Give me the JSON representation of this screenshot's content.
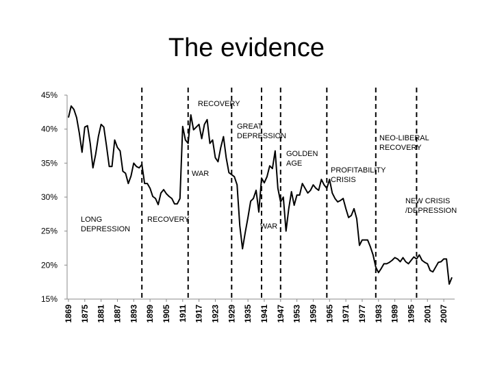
{
  "chart_data": {
    "type": "line",
    "title": "The evidence",
    "color": "#000000",
    "x": [
      1869,
      1870,
      1871,
      1872,
      1873,
      1874,
      1875,
      1876,
      1877,
      1878,
      1879,
      1880,
      1881,
      1882,
      1883,
      1884,
      1885,
      1886,
      1887,
      1888,
      1889,
      1890,
      1891,
      1892,
      1893,
      1894,
      1895,
      1896,
      1897,
      1898,
      1899,
      1900,
      1901,
      1902,
      1903,
      1904,
      1905,
      1906,
      1907,
      1908,
      1909,
      1910,
      1911,
      1912,
      1913,
      1914,
      1915,
      1916,
      1917,
      1918,
      1919,
      1920,
      1921,
      1922,
      1923,
      1924,
      1925,
      1926,
      1927,
      1928,
      1929,
      1930,
      1931,
      1932,
      1933,
      1934,
      1935,
      1936,
      1937,
      1938,
      1939,
      1940,
      1941,
      1942,
      1943,
      1944,
      1945,
      1946,
      1947,
      1948,
      1949,
      1950,
      1951,
      1952,
      1953,
      1954,
      1955,
      1956,
      1957,
      1958,
      1959,
      1960,
      1961,
      1962,
      1963,
      1964,
      1965,
      1966,
      1967,
      1968,
      1969,
      1970,
      1971,
      1972,
      1973,
      1974,
      1975,
      1976,
      1977,
      1978,
      1979,
      1980,
      1981,
      1982,
      1983,
      1984,
      1985,
      1986,
      1987,
      1988,
      1989,
      1990,
      1991,
      1992,
      1993,
      1994,
      1995,
      1996,
      1997,
      1998,
      1999,
      2000,
      2001,
      2002,
      2003,
      2004,
      2005,
      2006,
      2007,
      2008,
      2009,
      2010
    ],
    "values": [
      41.7,
      43.4,
      42.9,
      41.7,
      39.4,
      36.6,
      40.3,
      40.5,
      37.9,
      34.3,
      36.3,
      38.9,
      40.7,
      40.3,
      37.5,
      34.5,
      34.5,
      38.4,
      37.3,
      36.8,
      33.8,
      33.5,
      32.0,
      33.1,
      35.0,
      34.5,
      34.3,
      34.8,
      32.0,
      32.0,
      31.3,
      30.1,
      29.8,
      28.9,
      30.6,
      31.1,
      30.5,
      30.1,
      29.8,
      29.0,
      29.0,
      29.8,
      40.4,
      38.4,
      37.9,
      42.1,
      39.9,
      40.3,
      40.7,
      38.6,
      40.7,
      41.4,
      37.9,
      38.4,
      35.8,
      35.2,
      37.3,
      38.9,
      35.8,
      33.6,
      33.3,
      33.0,
      31.8,
      25.8,
      22.4,
      24.8,
      27.0,
      29.4,
      29.8,
      31.0,
      27.8,
      32.8,
      32.1,
      33.0,
      34.6,
      34.2,
      36.8,
      31.3,
      29.3,
      30.0,
      25.0,
      28.3,
      30.8,
      28.8,
      30.3,
      30.3,
      32.0,
      31.3,
      30.6,
      31.0,
      31.8,
      31.3,
      31.0,
      32.6,
      31.8,
      31.3,
      32.6,
      30.6,
      29.8,
      29.3,
      29.5,
      29.8,
      28.3,
      27.0,
      27.3,
      28.3,
      26.8,
      22.9,
      23.7,
      23.7,
      23.7,
      22.7,
      21.5,
      19.7,
      18.9,
      19.5,
      20.2,
      20.2,
      20.4,
      20.7,
      21.1,
      20.9,
      20.5,
      21.1,
      20.5,
      20.2,
      20.7,
      21.2,
      20.9,
      21.5,
      20.7,
      20.4,
      20.2,
      19.2,
      19.0,
      19.7,
      20.4,
      20.5,
      20.9,
      20.9,
      17.2,
      18.2
    ],
    "xlim": [
      1868,
      2011
    ],
    "xticks": [
      1869,
      1875,
      1881,
      1887,
      1893,
      1899,
      1905,
      1911,
      1917,
      1923,
      1929,
      1935,
      1941,
      1947,
      1953,
      1959,
      1965,
      1971,
      1977,
      1983,
      1989,
      1995,
      2001,
      2007
    ],
    "ylim": [
      15,
      45
    ],
    "yticks": [
      {
        "value": 15,
        "label": "15%"
      },
      {
        "value": 20,
        "label": "20%"
      },
      {
        "value": 25,
        "label": "25%"
      },
      {
        "value": 30,
        "label": "30%"
      },
      {
        "value": 35,
        "label": "35%"
      },
      {
        "value": 40,
        "label": "40%"
      },
      {
        "value": 45,
        "label": "45%"
      }
    ],
    "vlines": [
      1896,
      1913,
      1929,
      1940,
      1947,
      1964,
      1982,
      1997
    ],
    "annotations": [
      {
        "lines": [
          "RECOVERY"
        ]
      },
      {
        "lines": [
          "GREAT",
          "DEPRESSION"
        ]
      },
      {
        "lines": [
          "GOLDEN",
          "AGE"
        ]
      },
      {
        "lines": [
          "PROFITABILITY",
          "CRISIS"
        ]
      },
      {
        "lines": [
          "NEO-LIBERAL",
          "RECOVERY"
        ]
      },
      {
        "lines": [
          "WAR"
        ]
      },
      {
        "lines": [
          "LONG",
          "DEPRESSION"
        ]
      },
      {
        "lines": [
          "RECOVERY"
        ]
      },
      {
        "lines": [
          "NEW CRISIS",
          "/DEPRESSION"
        ]
      },
      {
        "lines": [
          "WAR"
        ]
      }
    ]
  }
}
